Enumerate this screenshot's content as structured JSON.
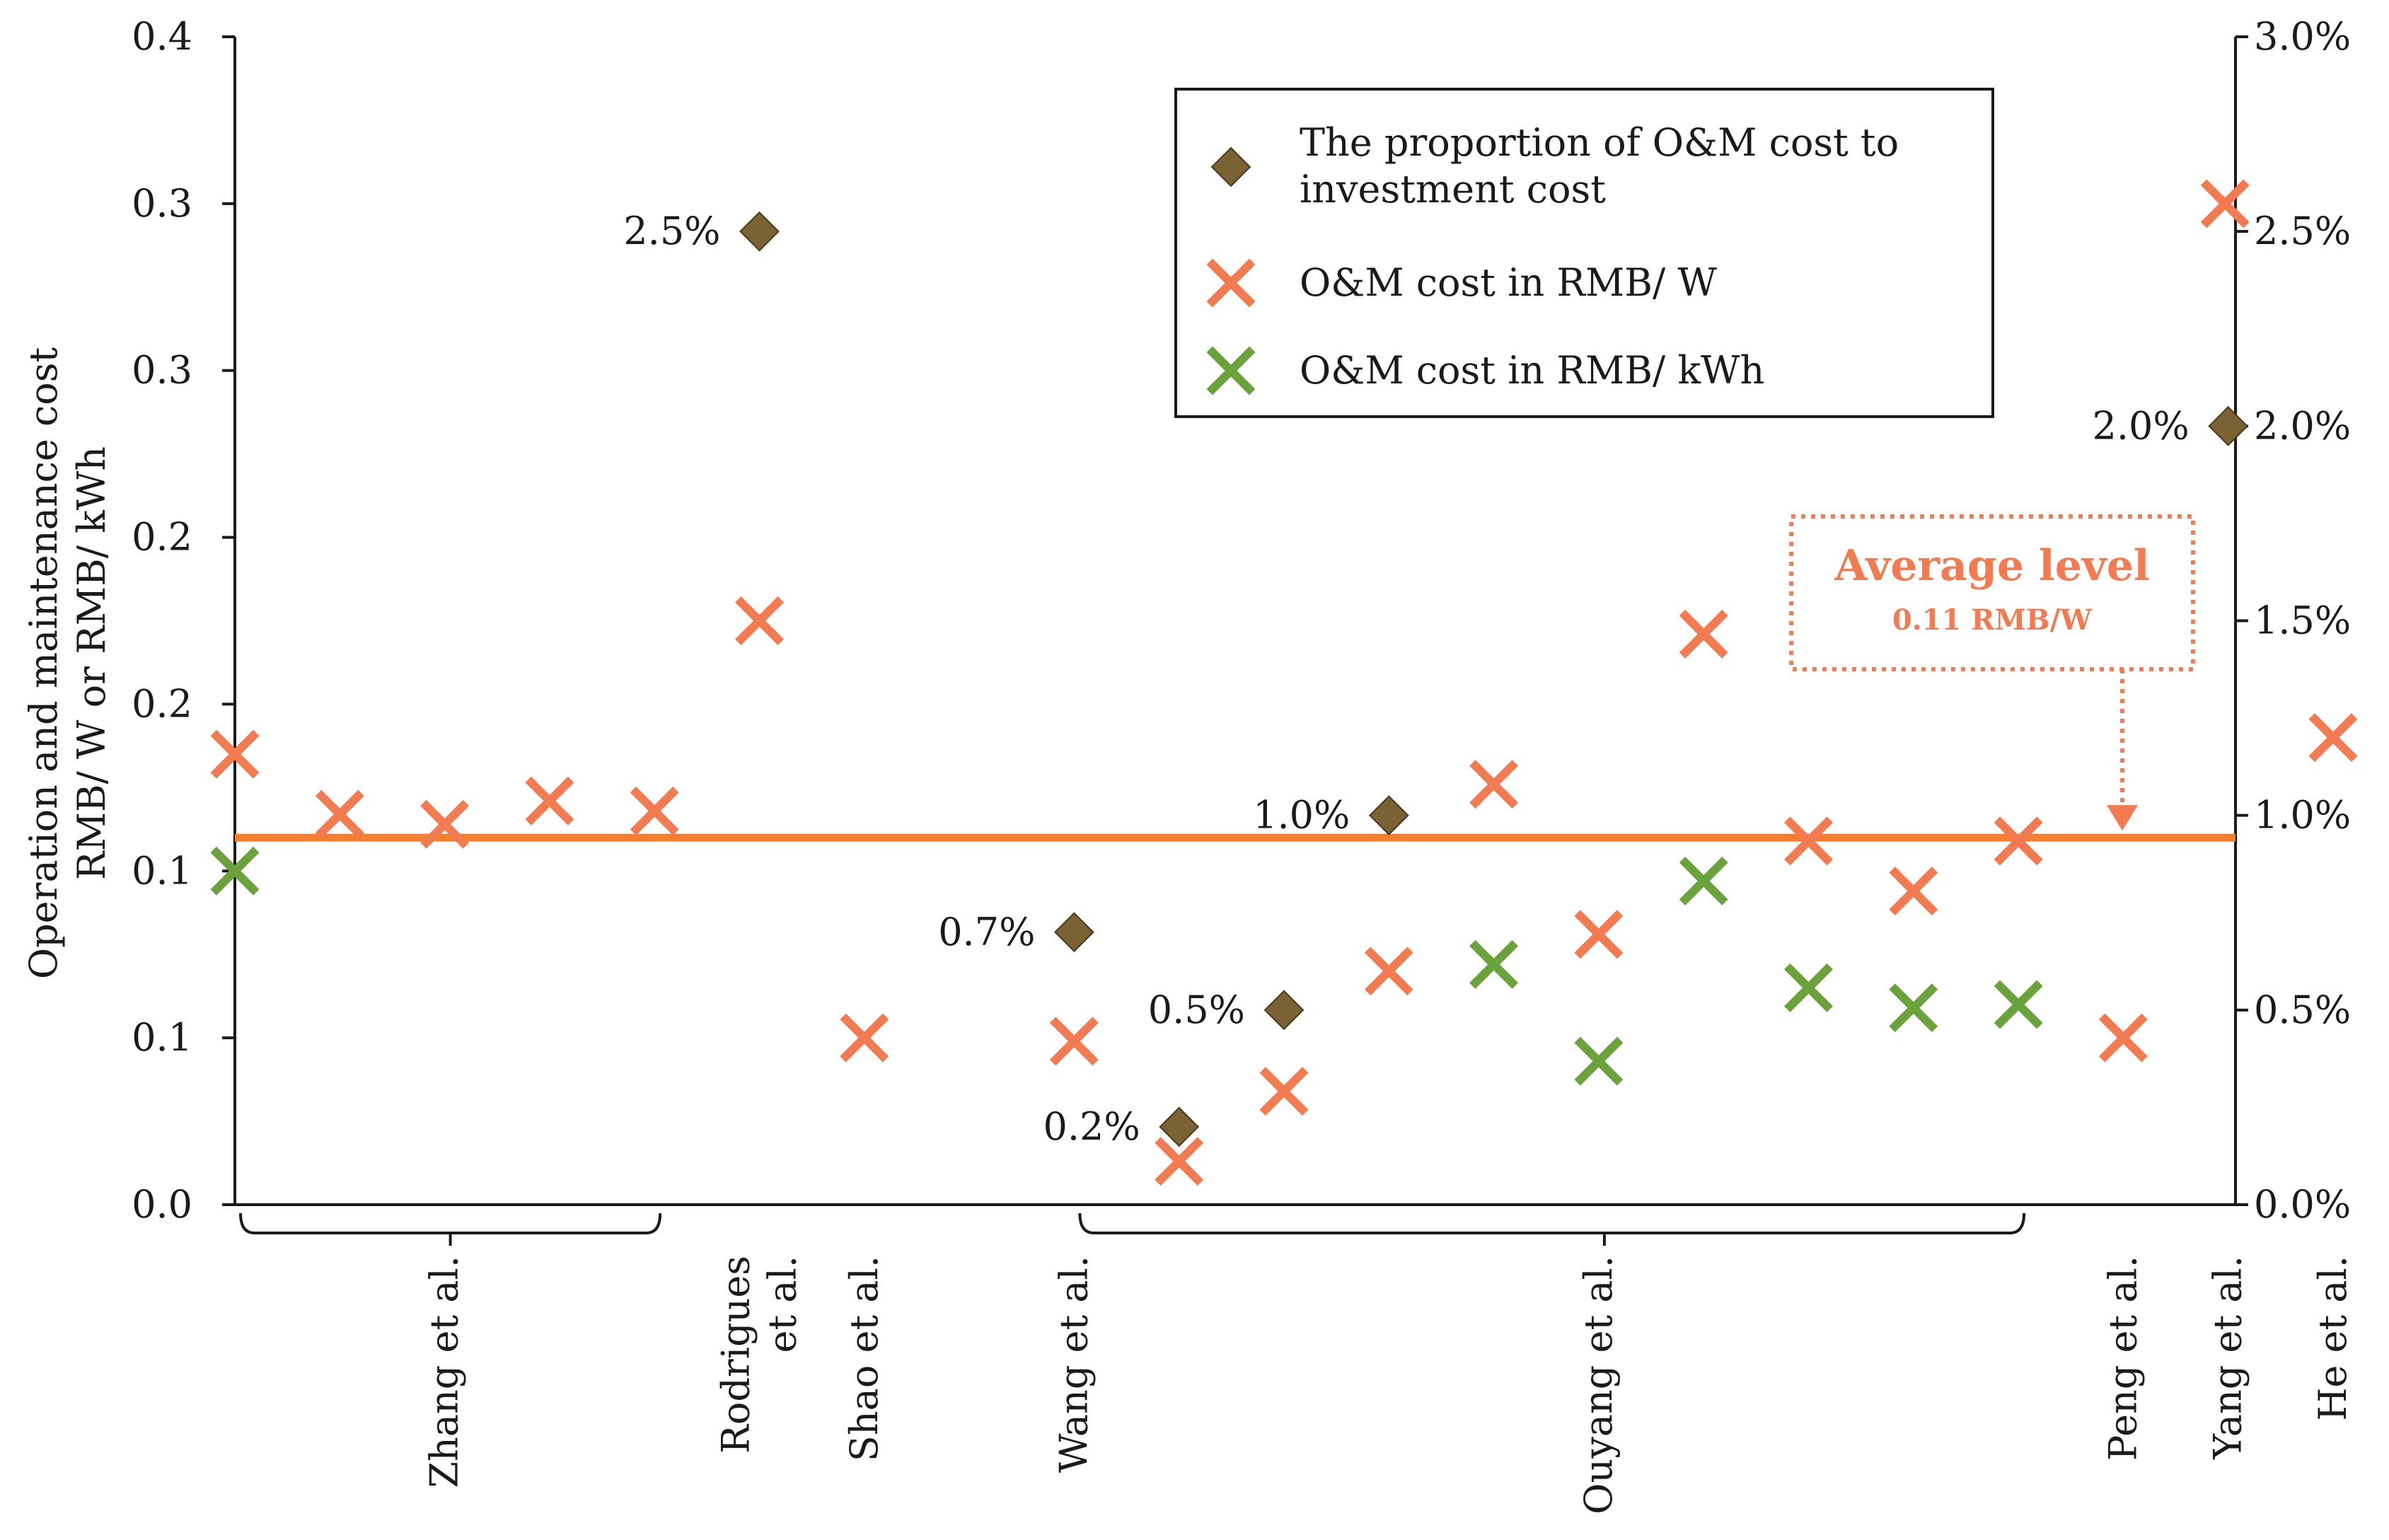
{
  "chart_data": {
    "type": "scatter",
    "left_axis": {
      "title_line1": "Operation and maintenance cost",
      "title_line2": "RMB/ W or RMB/ kWh",
      "ylim": [
        0,
        0.35
      ],
      "ticks": [
        0,
        0.05,
        0.1,
        0.15,
        0.2,
        0.25,
        0.3,
        0.35
      ],
      "tick_labels": [
        "0.0",
        "0.1",
        "0.1",
        "0.2",
        "0.2",
        "0.3",
        "0.3",
        "0.4"
      ]
    },
    "right_axis": {
      "ylim": [
        0,
        3.0
      ],
      "ticks": [
        0,
        0.5,
        1.0,
        1.5,
        2.0,
        2.5,
        3.0
      ],
      "tick_labels": [
        "0.0%",
        "0.5%",
        "1.0%",
        "1.5%",
        "2.0%",
        "2.5%",
        "3.0%"
      ]
    },
    "x_count": 20,
    "series": [
      {
        "name": "The proportion of O&M cost to investment cost",
        "marker": "diamond",
        "color": "#7b6234",
        "axis": "right",
        "points": [
          {
            "x": 6,
            "y": 2.5,
            "label": "2.5%"
          },
          {
            "x": 9,
            "y": 0.7,
            "label": "0.7%"
          },
          {
            "x": 10,
            "y": 0.2,
            "label": "0.2%"
          },
          {
            "x": 11,
            "y": 0.5,
            "label": "0.5%"
          },
          {
            "x": 12,
            "y": 1.0,
            "label": "1.0%"
          },
          {
            "x": 20,
            "y": 2.0,
            "label": "2.0%"
          }
        ]
      },
      {
        "name": "O&M cost in RMB/ W",
        "marker": "x",
        "color": "#f37b52",
        "axis": "left",
        "points": [
          {
            "x": 1,
            "y": 0.135
          },
          {
            "x": 2,
            "y": 0.117
          },
          {
            "x": 3,
            "y": 0.114
          },
          {
            "x": 4,
            "y": 0.121
          },
          {
            "x": 5,
            "y": 0.118
          },
          {
            "x": 6,
            "y": 0.175
          },
          {
            "x": 7,
            "y": 0.05
          },
          {
            "x": 9,
            "y": 0.049
          },
          {
            "x": 10,
            "y": 0.013
          },
          {
            "x": 11,
            "y": 0.034
          },
          {
            "x": 12,
            "y": 0.07
          },
          {
            "x": 13,
            "y": 0.126
          },
          {
            "x": 14,
            "y": 0.081
          },
          {
            "x": 15,
            "y": 0.171
          },
          {
            "x": 16,
            "y": 0.109
          },
          {
            "x": 17,
            "y": 0.094
          },
          {
            "x": 18,
            "y": 0.109
          },
          {
            "x": 19,
            "y": 0.05
          },
          {
            "x": 19.97,
            "y": 0.3
          },
          {
            "x": 21,
            "y": 0.14
          }
        ]
      },
      {
        "name": "O&M cost in RMB/ kWh",
        "marker": "x",
        "color": "#6aa33c",
        "axis": "left",
        "points": [
          {
            "x": 1,
            "y": 0.1
          },
          {
            "x": 13,
            "y": 0.072
          },
          {
            "x": 14,
            "y": 0.043
          },
          {
            "x": 15,
            "y": 0.097
          },
          {
            "x": 16,
            "y": 0.065
          },
          {
            "x": 17,
            "y": 0.059
          },
          {
            "x": 18,
            "y": 0.06
          }
        ]
      }
    ],
    "average_line": {
      "value": 0.11,
      "color": "#f57e2c"
    },
    "callout": {
      "title": "Average level",
      "subtitle": "0.11 RMB/W"
    },
    "studies": [
      {
        "label": "Zhang et al.",
        "x": 3,
        "bracket": [
          1,
          5
        ]
      },
      {
        "label_lines": [
          "Rodrigues",
          "et al."
        ],
        "x": 6
      },
      {
        "label": "Shao et al.",
        "x": 7
      },
      {
        "label": "Wang et al.",
        "x": 9
      },
      {
        "label": "Ouyang et al.",
        "x": 14,
        "bracket": [
          9,
          18
        ]
      },
      {
        "label": "Peng et al.",
        "x": 19
      },
      {
        "label": "Yang et al.",
        "x": 20
      },
      {
        "label": "He et al.",
        "x": 21
      }
    ]
  }
}
